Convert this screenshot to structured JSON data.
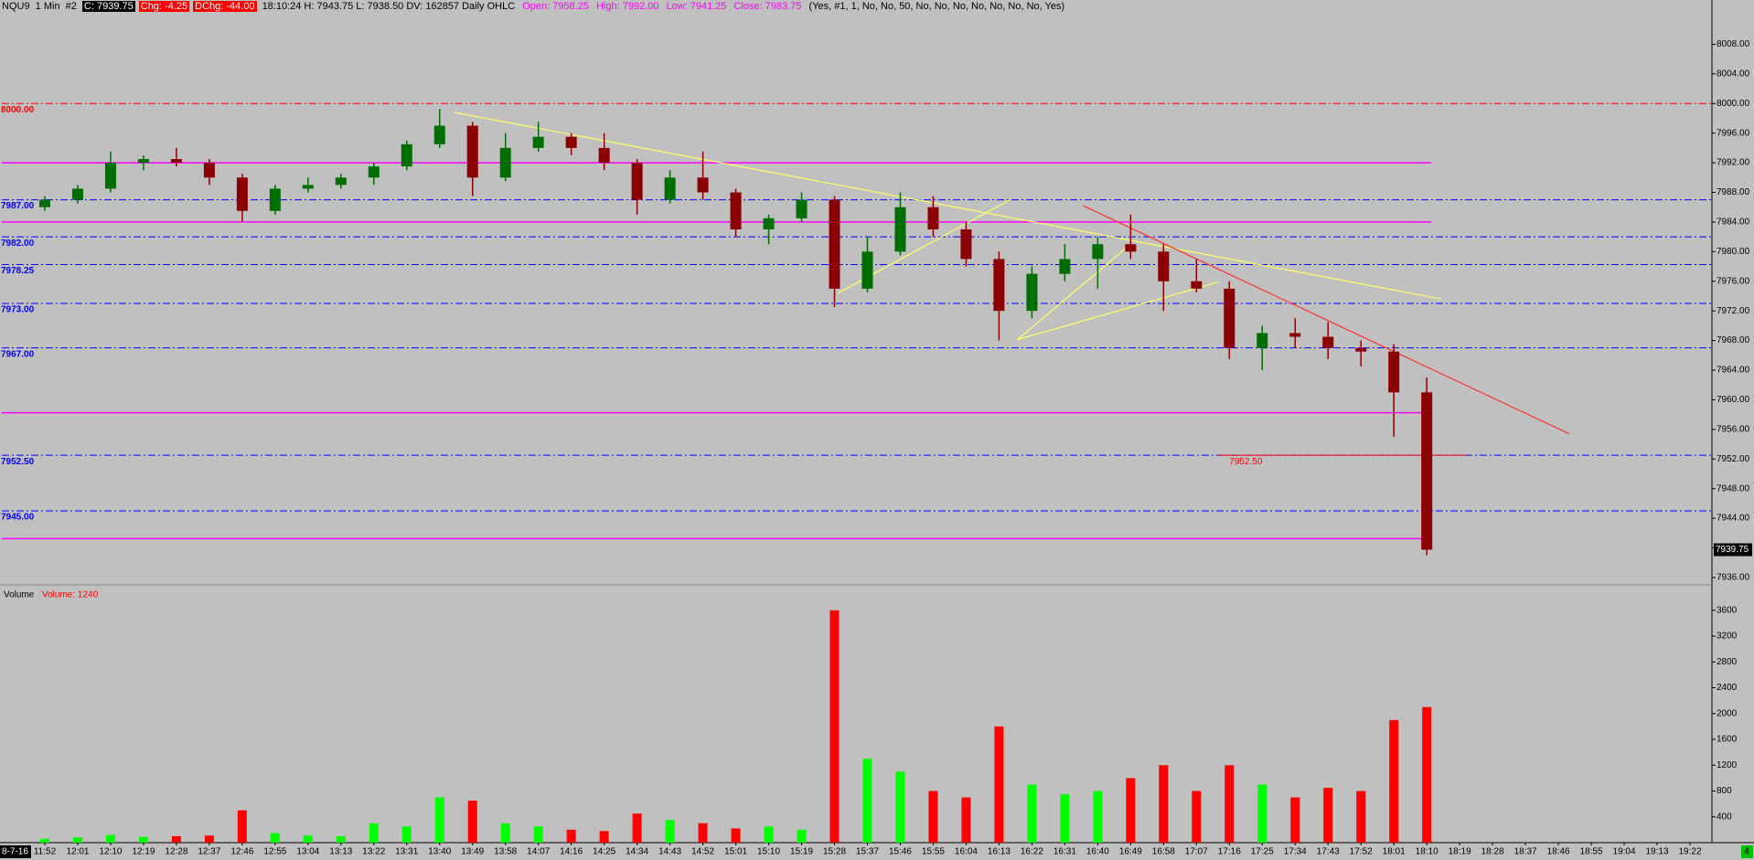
{
  "header": [
    {
      "text": "NQU9  1 Min  #2",
      "color": "#000000",
      "bg": ""
    },
    {
      "text": "C: 7939.75",
      "color": "#ffffff",
      "bg": "#000000"
    },
    {
      "text": "Chg: -4.25",
      "color": "#ffffff",
      "bg": "#ff0000"
    },
    {
      "text": "DChg: -44.00",
      "color": "#ffffff",
      "bg": "#ff0000"
    },
    {
      "text": "18:10:24 H: 7943.75 L: 7938.50 DV: 162857 Daily OHLC",
      "color": "#000000",
      "bg": ""
    },
    {
      "text": "Open: 7958.25",
      "color": "#ff00ff",
      "bg": ""
    },
    {
      "text": "High: 7992.00",
      "color": "#ff00ff",
      "bg": ""
    },
    {
      "text": "Low: 7941.25",
      "color": "#ff00ff",
      "bg": ""
    },
    {
      "text": "Close: 7983.75",
      "color": "#ff00ff",
      "bg": ""
    },
    {
      "text": "(Yes, #1, 1, No, No, 50, No, No, No, No, No, No, No, Yes)",
      "color": "#000000",
      "bg": ""
    }
  ],
  "footer": {
    "date": "8-7-16",
    "badge": "4"
  },
  "chart_data": [
    {
      "type": "candlestick",
      "up_color": "#006e00",
      "down_color": "#8b0000",
      "x": [
        "11:52",
        "12:01",
        "12:10",
        "12:19",
        "12:28",
        "12:37",
        "12:46",
        "12:55",
        "13:04",
        "13:13",
        "13:22",
        "13:31",
        "13:40",
        "13:49",
        "13:58",
        "14:07",
        "14:16",
        "14:25",
        "14:34",
        "14:43",
        "14:52",
        "15:01",
        "15:10",
        "15:19",
        "15:28",
        "15:37",
        "15:46",
        "15:55",
        "16:04",
        "16:13",
        "16:22",
        "16:31",
        "16:40",
        "16:49",
        "16:58",
        "17:07",
        "17:16",
        "17:25",
        "17:34",
        "17:43",
        "17:52",
        "18:01",
        "18:10"
      ],
      "open": [
        7986,
        7987,
        7988.5,
        7992,
        7992.5,
        7992,
        7990,
        7985.5,
        7988.5,
        7989,
        7990,
        7991.5,
        7994.5,
        7997,
        7990,
        7994,
        7995.5,
        7994,
        7992,
        7987,
        7990,
        7988,
        7983,
        7984.5,
        7987,
        7975,
        7980,
        7986,
        7983,
        7979,
        7972,
        7977,
        7979,
        7981,
        7980,
        7976,
        7975,
        7967,
        7969,
        7968.5,
        7967,
        7966.5,
        7961
      ],
      "high": [
        7987.5,
        7989,
        7993.5,
        7993,
        7994,
        7992.5,
        7990.5,
        7989,
        7990,
        7990.5,
        7992,
        7995,
        7999.25,
        7997.5,
        7996,
        7997.5,
        7996,
        7996,
        7992.5,
        7991,
        7993.5,
        7988.5,
        7985,
        7988,
        7987.5,
        7982,
        7988,
        7987.5,
        7984,
        7980,
        7978,
        7981,
        7982,
        7985,
        7981,
        7979,
        7976,
        7970,
        7971,
        7970.5,
        7968,
        7967.5,
        7963
      ],
      "low": [
        7985.5,
        7986.5,
        7988,
        7991,
        7991.5,
        7989,
        7984,
        7985,
        7988,
        7988.5,
        7989,
        7991,
        7994,
        7987.5,
        7989.5,
        7993.5,
        7993,
        7991,
        7985,
        7986.5,
        7987,
        7982,
        7981,
        7984,
        7972.5,
        7974.5,
        7979.5,
        7982,
        7978,
        7968,
        7971,
        7976,
        7975,
        7979,
        7972,
        7974.5,
        7965.5,
        7964,
        7967,
        7965.5,
        7964.5,
        7955,
        7939
      ],
      "close": [
        7987,
        7988.5,
        7992,
        7992.5,
        7992,
        7990,
        7985.5,
        7988.5,
        7989,
        7990,
        7991.5,
        7994.5,
        7997,
        7990,
        7994,
        7995.5,
        7994,
        7992,
        7987,
        7990,
        7988,
        7983,
        7984.5,
        7987,
        7975,
        7980,
        7986,
        7983,
        7979,
        7972,
        7977,
        7979,
        7981,
        7980,
        7976,
        7975,
        7967,
        7969,
        7968.5,
        7967,
        7966.5,
        7961,
        7939.75
      ],
      "last_label": "7939.75",
      "ylim": [
        7935,
        8012
      ],
      "yticks": [
        {
          "value": 7936,
          "label": "7936.00"
        },
        {
          "value": 7940,
          "label": "7940.00"
        },
        {
          "value": 7944,
          "label": "7944.00"
        },
        {
          "value": 7948,
          "label": "7948.00"
        },
        {
          "value": 7952,
          "label": "7952.00"
        },
        {
          "value": 7956,
          "label": "7956.00"
        },
        {
          "value": 7960,
          "label": "7960.00"
        },
        {
          "value": 7964,
          "label": "7964.00"
        },
        {
          "value": 7968,
          "label": "7968.00"
        },
        {
          "value": 7972,
          "label": "7972.00"
        },
        {
          "value": 7976,
          "label": "7976.00"
        },
        {
          "value": 7980,
          "label": "7980.00"
        },
        {
          "value": 7984,
          "label": "7984.00"
        },
        {
          "value": 7988,
          "label": "7988.00"
        },
        {
          "value": 7992,
          "label": "7992.00"
        },
        {
          "value": 7996,
          "label": "7996.00"
        },
        {
          "value": 8000,
          "label": "8000.00"
        },
        {
          "value": 8004,
          "label": "8004.00"
        },
        {
          "value": 8008,
          "label": "8008.00"
        }
      ],
      "levels": [
        {
          "value": 8000,
          "label": "8000.00",
          "color": "#ff0000",
          "style": "dashdot"
        },
        {
          "value": 7992,
          "color": "#ff00ff",
          "style": "solid"
        },
        {
          "value": 7987,
          "label": "7987.00",
          "color": "#0000ff",
          "style": "dashdot"
        },
        {
          "value": 7984,
          "color": "#ff00ff",
          "style": "solid"
        },
        {
          "value": 7982,
          "label": "7982.00",
          "color": "#0000ff",
          "style": "dashdot"
        },
        {
          "value": 7978.25,
          "label": "7978.25",
          "color": "#0000ff",
          "style": "dashdot"
        },
        {
          "value": 7973,
          "label": "7973.00",
          "color": "#0000ff",
          "style": "dashdot"
        },
        {
          "value": 7967,
          "label": "7967.00",
          "color": "#0000ff",
          "style": "dashdot"
        },
        {
          "value": 7958.25,
          "color": "#ff00ff",
          "style": "solid"
        },
        {
          "value": 7952.5,
          "label": "7952.50",
          "color": "#0000ff",
          "style": "dashdot"
        },
        {
          "value": 7945,
          "label": "7945.00",
          "color": "#0000ff",
          "style": "dashdot"
        },
        {
          "value": 7941.25,
          "color": "#ff00ff",
          "style": "solid"
        }
      ],
      "annotation": {
        "text": "7952.50",
        "value": 7952.5,
        "from": "17:13",
        "to": "18:21",
        "color": "#ff0000"
      },
      "trendlines": [
        {
          "color": "#ffff66",
          "points": [
            [
              "13:44",
              7998.8
            ],
            [
              "18:14",
              7973.6
            ]
          ]
        },
        {
          "color": "#ff3030",
          "points": [
            [
              "16:36",
              7986.2
            ],
            [
              "18:49",
              7955.4
            ]
          ]
        },
        {
          "color": "#ffff66",
          "points": [
            [
              "15:29",
              7974.4
            ],
            [
              "16:16",
              7987
            ]
          ]
        },
        {
          "color": "#ffff66",
          "points": [
            [
              "16:18",
              7968.1
            ],
            [
              "17:13",
              7975.9
            ]
          ]
        },
        {
          "color": "#ffff66",
          "points": [
            [
              "16:18",
              7968.1
            ],
            [
              "16:49",
              7981
            ]
          ]
        }
      ],
      "xticks": [
        "11:52",
        "12:01",
        "12:10",
        "12:19",
        "12:28",
        "12:37",
        "12:46",
        "12:55",
        "13:04",
        "13:13",
        "13:22",
        "13:31",
        "13:40",
        "13:49",
        "13:58",
        "14:07",
        "14:16",
        "14:25",
        "14:34",
        "14:43",
        "14:52",
        "15:01",
        "15:10",
        "15:19",
        "15:28",
        "15:37",
        "15:46",
        "15:55",
        "16:04",
        "16:13",
        "16:22",
        "16:31",
        "16:40",
        "16:49",
        "16:58",
        "17:07",
        "17:16",
        "17:25",
        "17:34",
        "17:43",
        "17:52",
        "18:01",
        "18:10",
        "18:19",
        "18:28",
        "18:37",
        "18:46",
        "18:55",
        "19:04",
        "19:13",
        "19:22"
      ]
    },
    {
      "type": "bar",
      "title": "Volume",
      "legend_text": "Volume: 1240",
      "up_color": "#00ff00",
      "down_color": "#ff0000",
      "x": [
        "11:52",
        "12:01",
        "12:10",
        "12:19",
        "12:28",
        "12:37",
        "12:46",
        "12:55",
        "13:04",
        "13:13",
        "13:22",
        "13:31",
        "13:40",
        "13:49",
        "13:58",
        "14:07",
        "14:16",
        "14:25",
        "14:34",
        "14:43",
        "14:52",
        "15:01",
        "15:10",
        "15:19",
        "15:28",
        "15:37",
        "15:46",
        "15:55",
        "16:04",
        "16:13",
        "16:22",
        "16:31",
        "16:40",
        "16:49",
        "16:58",
        "17:07",
        "17:16",
        "17:25",
        "17:34",
        "17:43",
        "17:52",
        "18:01",
        "18:10"
      ],
      "values": [
        60,
        80,
        120,
        90,
        100,
        110,
        500,
        150,
        110,
        100,
        300,
        250,
        700,
        650,
        300,
        250,
        200,
        180,
        450,
        350,
        300,
        220,
        250,
        200,
        3600,
        1300,
        1100,
        800,
        700,
        1800,
        900,
        750,
        800,
        1000,
        1200,
        800,
        1200,
        900,
        700,
        850,
        800,
        1900,
        2100
      ],
      "ylim": [
        0,
        3880
      ],
      "yticks": [
        400,
        800,
        1200,
        1600,
        2000,
        2400,
        2800,
        3200,
        3600
      ]
    }
  ]
}
